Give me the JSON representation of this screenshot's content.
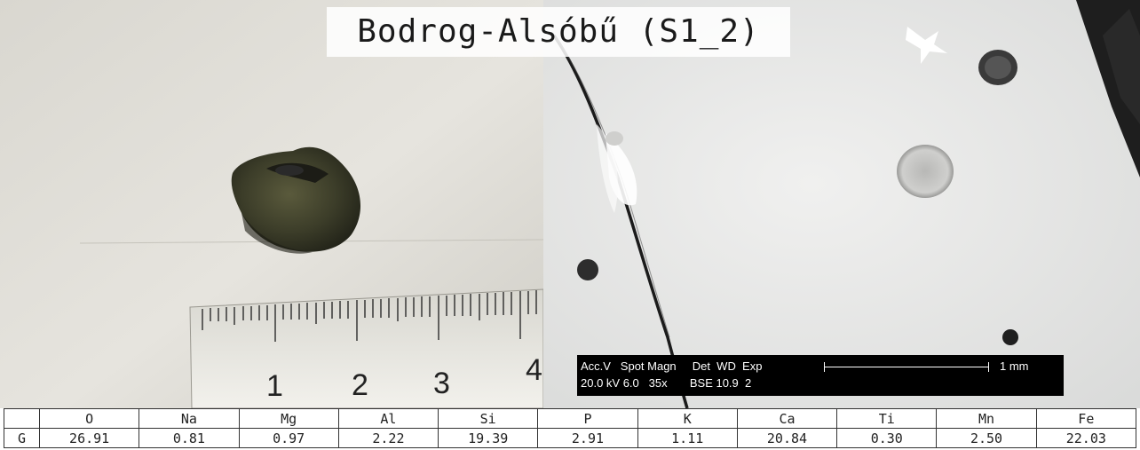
{
  "title": "Bodrog-Alsóbű (S1_2)",
  "photo": {
    "ruler_numbers": [
      "1",
      "2",
      "3",
      "4"
    ]
  },
  "sem": {
    "info_row1": "Acc.V   Spot Magn     Det  WD  Exp",
    "info_row2": "20.0 kV 6.0   35x       BSE 10.9  2",
    "scale_label": "1 mm"
  },
  "table": {
    "headers": [
      "",
      "O",
      "Na",
      "Mg",
      "Al",
      "Si",
      "P",
      "K",
      "Ca",
      "Ti",
      "Mn",
      "Fe"
    ],
    "rows": [
      [
        "G",
        "26.91",
        "0.81",
        "0.97",
        "2.22",
        "19.39",
        "2.91",
        "1.11",
        "20.84",
        "0.30",
        "2.50",
        "22.03"
      ]
    ]
  }
}
